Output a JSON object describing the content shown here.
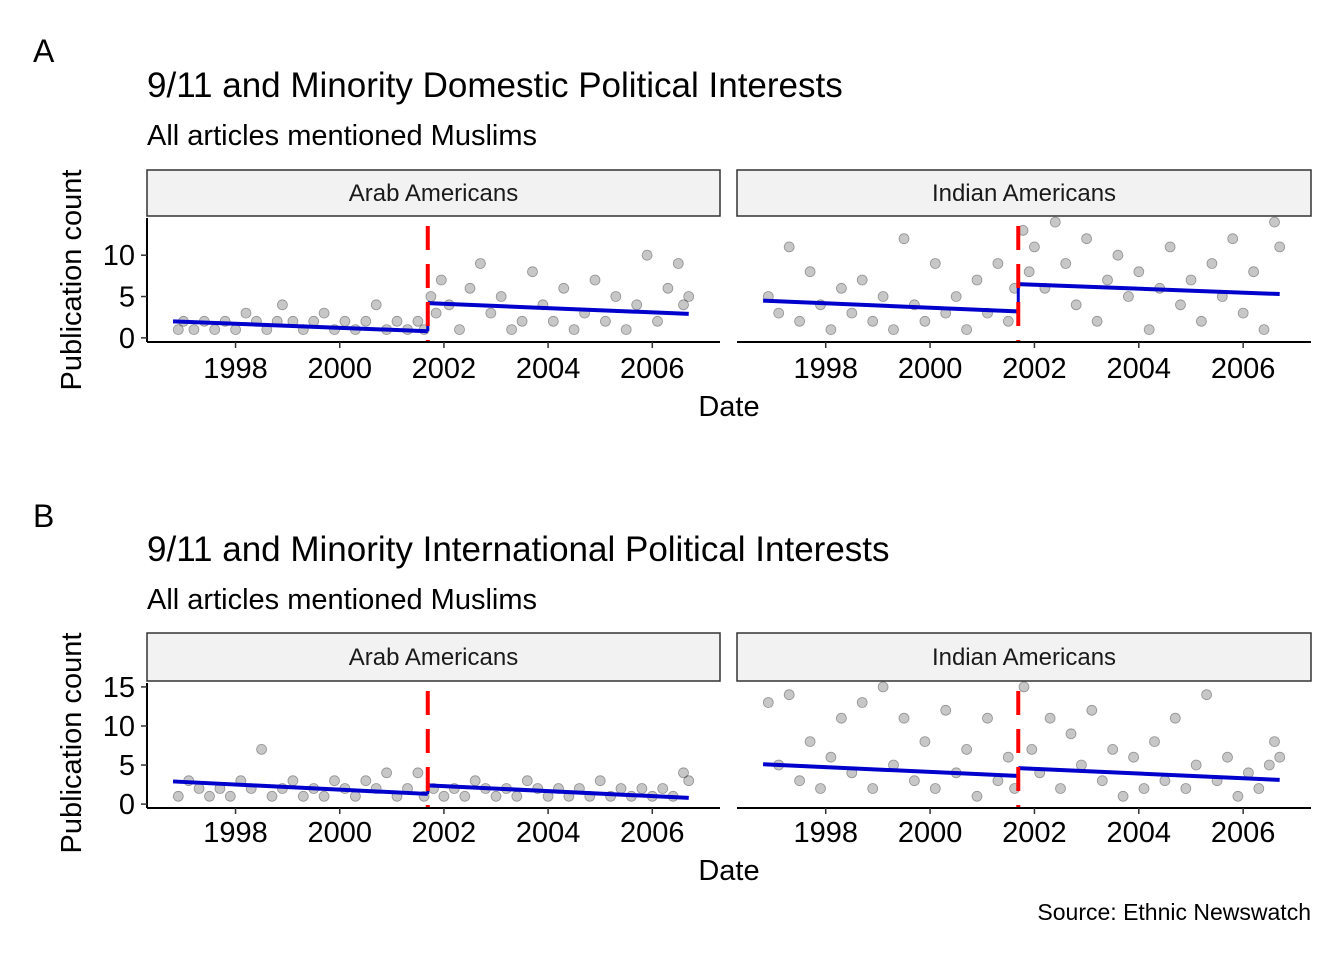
{
  "caption": "Source: Ethnic Newswatch",
  "chart_data": [
    {
      "type": "scatter",
      "tag": "A",
      "title": "9/11 and Minority Domestic Political Interests",
      "subtitle": "All articles mentioned Muslims",
      "xlabel": "Date",
      "ylabel": "Publication count",
      "xlim": [
        1996.3,
        2007.3
      ],
      "ylim": [
        -0.5,
        14.5
      ],
      "x_ticks": [
        1998,
        2000,
        2002,
        2004,
        2006
      ],
      "y_ticks": [
        0,
        5,
        10
      ],
      "event_line": 2001.69,
      "line_color": "#ff0000",
      "fit_color": "#0000cd",
      "point_color": "#000000",
      "panels": [
        {
          "label": "Arab Americans",
          "fit": [
            {
              "x": [
                1996.8,
                2001.69
              ],
              "y": [
                2.0,
                0.8
              ]
            },
            {
              "x": [
                2001.69,
                2006.7
              ],
              "y": [
                4.2,
                2.9
              ]
            }
          ],
          "points": [
            [
              1996.9,
              1
            ],
            [
              1997.0,
              2
            ],
            [
              1997.2,
              1
            ],
            [
              1997.4,
              2
            ],
            [
              1997.6,
              1
            ],
            [
              1997.8,
              2
            ],
            [
              1998.0,
              1
            ],
            [
              1998.2,
              3
            ],
            [
              1998.4,
              2
            ],
            [
              1998.6,
              1
            ],
            [
              1998.8,
              2
            ],
            [
              1998.9,
              4
            ],
            [
              1999.1,
              2
            ],
            [
              1999.3,
              1
            ],
            [
              1999.5,
              2
            ],
            [
              1999.7,
              3
            ],
            [
              1999.9,
              1
            ],
            [
              2000.1,
              2
            ],
            [
              2000.3,
              1
            ],
            [
              2000.5,
              2
            ],
            [
              2000.7,
              4
            ],
            [
              2000.9,
              1
            ],
            [
              2001.1,
              2
            ],
            [
              2001.3,
              1
            ],
            [
              2001.5,
              2
            ],
            [
              2001.62,
              1
            ],
            [
              2001.75,
              5
            ],
            [
              2001.85,
              3
            ],
            [
              2001.95,
              7
            ],
            [
              2002.1,
              4
            ],
            [
              2002.3,
              1
            ],
            [
              2002.5,
              6
            ],
            [
              2002.7,
              9
            ],
            [
              2002.9,
              3
            ],
            [
              2003.1,
              5
            ],
            [
              2003.3,
              1
            ],
            [
              2003.5,
              2
            ],
            [
              2003.7,
              8
            ],
            [
              2003.9,
              4
            ],
            [
              2004.1,
              2
            ],
            [
              2004.3,
              6
            ],
            [
              2004.5,
              1
            ],
            [
              2004.7,
              3
            ],
            [
              2004.9,
              7
            ],
            [
              2005.1,
              2
            ],
            [
              2005.3,
              5
            ],
            [
              2005.5,
              1
            ],
            [
              2005.7,
              4
            ],
            [
              2005.9,
              10
            ],
            [
              2006.1,
              2
            ],
            [
              2006.3,
              6
            ],
            [
              2006.5,
              9
            ],
            [
              2006.6,
              4
            ],
            [
              2006.7,
              5
            ]
          ]
        },
        {
          "label": "Indian Americans",
          "fit": [
            {
              "x": [
                1996.8,
                2001.69
              ],
              "y": [
                4.5,
                3.2
              ]
            },
            {
              "x": [
                2001.69,
                2006.7
              ],
              "y": [
                6.5,
                5.3
              ]
            }
          ],
          "points": [
            [
              1996.9,
              5
            ],
            [
              1997.1,
              3
            ],
            [
              1997.3,
              11
            ],
            [
              1997.5,
              2
            ],
            [
              1997.7,
              8
            ],
            [
              1997.9,
              4
            ],
            [
              1998.1,
              1
            ],
            [
              1998.3,
              6
            ],
            [
              1998.5,
              3
            ],
            [
              1998.7,
              7
            ],
            [
              1998.9,
              2
            ],
            [
              1999.1,
              5
            ],
            [
              1999.3,
              1
            ],
            [
              1999.5,
              12
            ],
            [
              1999.7,
              4
            ],
            [
              1999.9,
              2
            ],
            [
              2000.1,
              9
            ],
            [
              2000.3,
              3
            ],
            [
              2000.5,
              5
            ],
            [
              2000.7,
              1
            ],
            [
              2000.9,
              7
            ],
            [
              2001.1,
              3
            ],
            [
              2001.3,
              9
            ],
            [
              2001.5,
              2
            ],
            [
              2001.62,
              6
            ],
            [
              2001.78,
              13
            ],
            [
              2001.9,
              8
            ],
            [
              2002.0,
              11
            ],
            [
              2002.2,
              6
            ],
            [
              2002.4,
              14
            ],
            [
              2002.6,
              9
            ],
            [
              2002.8,
              4
            ],
            [
              2003.0,
              12
            ],
            [
              2003.2,
              2
            ],
            [
              2003.4,
              7
            ],
            [
              2003.6,
              10
            ],
            [
              2003.8,
              5
            ],
            [
              2004.0,
              8
            ],
            [
              2004.2,
              1
            ],
            [
              2004.4,
              6
            ],
            [
              2004.6,
              11
            ],
            [
              2004.8,
              4
            ],
            [
              2005.0,
              7
            ],
            [
              2005.2,
              2
            ],
            [
              2005.4,
              9
            ],
            [
              2005.6,
              5
            ],
            [
              2005.8,
              12
            ],
            [
              2006.0,
              3
            ],
            [
              2006.2,
              8
            ],
            [
              2006.4,
              1
            ],
            [
              2006.6,
              14
            ],
            [
              2006.7,
              11
            ]
          ]
        }
      ]
    },
    {
      "type": "scatter",
      "tag": "B",
      "title": "9/11 and Minority International Political Interests",
      "subtitle": "All articles mentioned Muslims",
      "xlabel": "Date",
      "ylabel": "Publication count",
      "xlim": [
        1996.3,
        2007.3
      ],
      "ylim": [
        -0.5,
        15.5
      ],
      "x_ticks": [
        1998,
        2000,
        2002,
        2004,
        2006
      ],
      "y_ticks": [
        0,
        5,
        10,
        15
      ],
      "event_line": 2001.69,
      "line_color": "#ff0000",
      "fit_color": "#0000cd",
      "point_color": "#000000",
      "panels": [
        {
          "label": "Arab Americans",
          "fit": [
            {
              "x": [
                1996.8,
                2001.69
              ],
              "y": [
                2.9,
                1.3
              ]
            },
            {
              "x": [
                2001.69,
                2006.7
              ],
              "y": [
                2.4,
                0.8
              ]
            }
          ],
          "points": [
            [
              1996.9,
              1
            ],
            [
              1997.1,
              3
            ],
            [
              1997.3,
              2
            ],
            [
              1997.5,
              1
            ],
            [
              1997.7,
              2
            ],
            [
              1997.9,
              1
            ],
            [
              1998.1,
              3
            ],
            [
              1998.3,
              2
            ],
            [
              1998.5,
              7
            ],
            [
              1998.7,
              1
            ],
            [
              1998.9,
              2
            ],
            [
              1999.1,
              3
            ],
            [
              1999.3,
              1
            ],
            [
              1999.5,
              2
            ],
            [
              1999.7,
              1
            ],
            [
              1999.9,
              3
            ],
            [
              2000.1,
              2
            ],
            [
              2000.3,
              1
            ],
            [
              2000.5,
              3
            ],
            [
              2000.7,
              2
            ],
            [
              2000.9,
              4
            ],
            [
              2001.1,
              1
            ],
            [
              2001.3,
              2
            ],
            [
              2001.5,
              4
            ],
            [
              2001.62,
              1
            ],
            [
              2001.8,
              2
            ],
            [
              2002.0,
              1
            ],
            [
              2002.2,
              2
            ],
            [
              2002.4,
              1
            ],
            [
              2002.6,
              3
            ],
            [
              2002.8,
              2
            ],
            [
              2003.0,
              1
            ],
            [
              2003.2,
              2
            ],
            [
              2003.4,
              1
            ],
            [
              2003.6,
              3
            ],
            [
              2003.8,
              2
            ],
            [
              2004.0,
              1
            ],
            [
              2004.2,
              2
            ],
            [
              2004.4,
              1
            ],
            [
              2004.6,
              2
            ],
            [
              2004.8,
              1
            ],
            [
              2005.0,
              3
            ],
            [
              2005.2,
              1
            ],
            [
              2005.4,
              2
            ],
            [
              2005.6,
              1
            ],
            [
              2005.8,
              2
            ],
            [
              2006.0,
              1
            ],
            [
              2006.2,
              2
            ],
            [
              2006.4,
              1
            ],
            [
              2006.6,
              4
            ],
            [
              2006.7,
              3
            ]
          ]
        },
        {
          "label": "Indian Americans",
          "fit": [
            {
              "x": [
                1996.8,
                2001.69
              ],
              "y": [
                5.1,
                3.6
              ]
            },
            {
              "x": [
                2001.69,
                2006.7
              ],
              "y": [
                4.6,
                3.1
              ]
            }
          ],
          "points": [
            [
              1996.9,
              13
            ],
            [
              1997.1,
              5
            ],
            [
              1997.3,
              14
            ],
            [
              1997.5,
              3
            ],
            [
              1997.7,
              8
            ],
            [
              1997.9,
              2
            ],
            [
              1998.1,
              6
            ],
            [
              1998.3,
              11
            ],
            [
              1998.5,
              4
            ],
            [
              1998.7,
              13
            ],
            [
              1998.9,
              2
            ],
            [
              1999.1,
              15
            ],
            [
              1999.3,
              5
            ],
            [
              1999.5,
              11
            ],
            [
              1999.7,
              3
            ],
            [
              1999.9,
              8
            ],
            [
              2000.1,
              2
            ],
            [
              2000.3,
              12
            ],
            [
              2000.5,
              4
            ],
            [
              2000.7,
              7
            ],
            [
              2000.9,
              1
            ],
            [
              2001.1,
              11
            ],
            [
              2001.3,
              3
            ],
            [
              2001.5,
              6
            ],
            [
              2001.62,
              2
            ],
            [
              2001.8,
              15
            ],
            [
              2001.95,
              7
            ],
            [
              2002.1,
              4
            ],
            [
              2002.3,
              11
            ],
            [
              2002.5,
              2
            ],
            [
              2002.7,
              9
            ],
            [
              2002.9,
              5
            ],
            [
              2003.1,
              12
            ],
            [
              2003.3,
              3
            ],
            [
              2003.5,
              7
            ],
            [
              2003.7,
              1
            ],
            [
              2003.9,
              6
            ],
            [
              2004.1,
              2
            ],
            [
              2004.3,
              8
            ],
            [
              2004.5,
              3
            ],
            [
              2004.7,
              11
            ],
            [
              2004.9,
              2
            ],
            [
              2005.1,
              5
            ],
            [
              2005.3,
              14
            ],
            [
              2005.5,
              3
            ],
            [
              2005.7,
              6
            ],
            [
              2005.9,
              1
            ],
            [
              2006.1,
              4
            ],
            [
              2006.3,
              2
            ],
            [
              2006.5,
              5
            ],
            [
              2006.6,
              8
            ],
            [
              2006.7,
              6
            ]
          ]
        }
      ]
    }
  ]
}
